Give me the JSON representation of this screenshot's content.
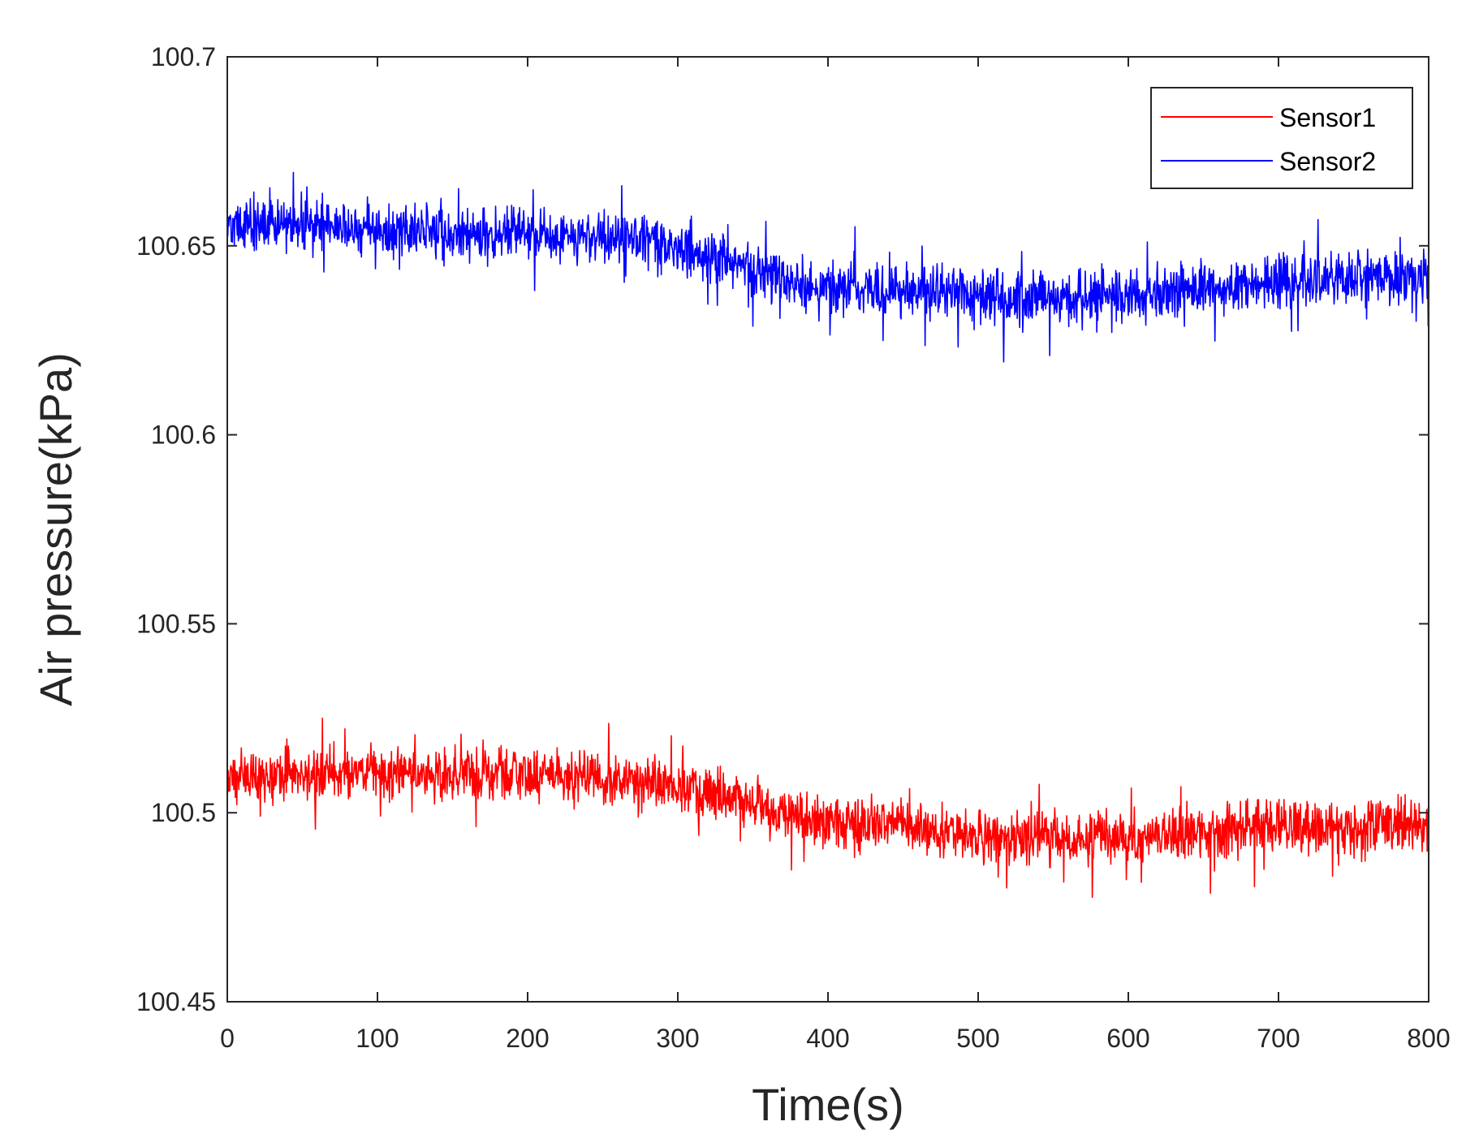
{
  "chart_data": {
    "type": "line",
    "title": "",
    "xlabel": "Time(s)",
    "ylabel": "Air pressure(kPa)",
    "xlim": [
      0,
      800
    ],
    "ylim": [
      100.45,
      100.7
    ],
    "xticks": [
      0,
      100,
      200,
      300,
      400,
      500,
      600,
      700,
      800
    ],
    "xtick_labels": [
      "0",
      "100",
      "200",
      "300",
      "400",
      "500",
      "600",
      "700",
      "800"
    ],
    "yticks": [
      100.45,
      100.5,
      100.55,
      100.6,
      100.65,
      100.7
    ],
    "ytick_labels": [
      "100.45",
      "100.5",
      "100.55",
      "100.6",
      "100.65",
      "100.7"
    ],
    "grid": false,
    "legend_position": "top-right",
    "noise_amplitude_kpa": 0.006,
    "series": [
      {
        "name": "Sensor1",
        "color": "#ff0000",
        "x": [
          0,
          50,
          100,
          150,
          200,
          250,
          280,
          300,
          330,
          350,
          370,
          400,
          450,
          500,
          550,
          600,
          650,
          700,
          750,
          800
        ],
        "values": [
          100.51,
          100.51,
          100.511,
          100.51,
          100.51,
          100.509,
          100.508,
          100.506,
          100.504,
          100.502,
          100.499,
          100.497,
          100.496,
          100.494,
          100.493,
          100.493,
          100.495,
          100.496,
          100.496,
          100.497
        ]
      },
      {
        "name": "Sensor2",
        "color": "#0000ff",
        "x": [
          0,
          50,
          100,
          150,
          200,
          250,
          280,
          300,
          330,
          350,
          370,
          400,
          450,
          500,
          550,
          600,
          650,
          700,
          750,
          800
        ],
        "values": [
          100.656,
          100.656,
          100.654,
          100.653,
          100.653,
          100.652,
          100.651,
          100.649,
          100.646,
          100.643,
          100.641,
          100.639,
          100.638,
          100.637,
          100.636,
          100.637,
          100.639,
          100.64,
          100.641,
          100.641
        ]
      }
    ]
  }
}
